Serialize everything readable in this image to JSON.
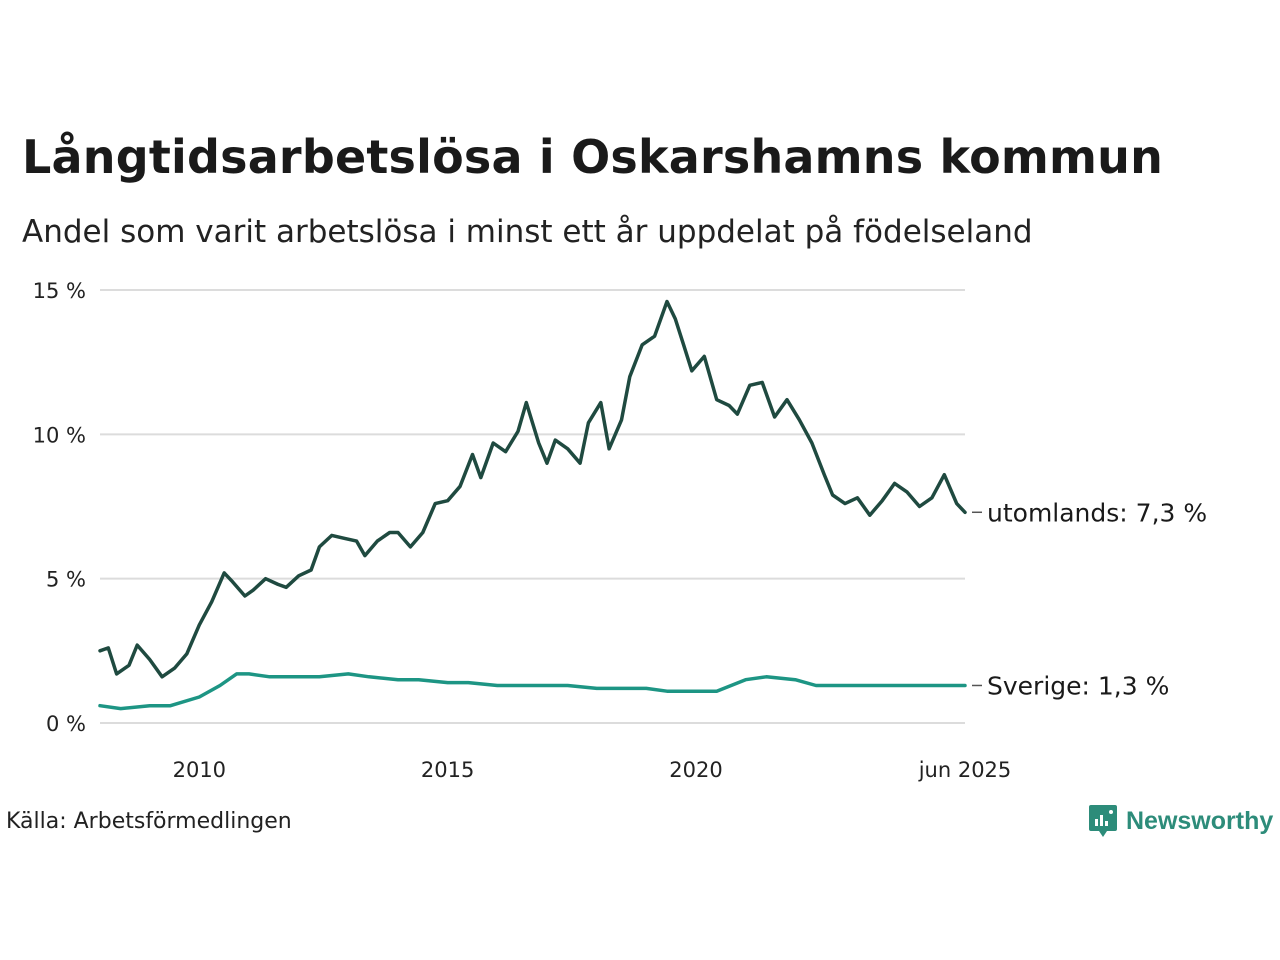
{
  "title": "Långtidsarbetslösa i Oskarshamns kommun",
  "subtitle": "Andel som varit arbetslösa i minst ett år uppdelat på födelseland",
  "source": "Källa: Arbetsförmedlingen",
  "brand": {
    "name": "Newsworthy",
    "icon": "newsworthy-logo-icon",
    "color": "#2d8c7a"
  },
  "chart_data": {
    "type": "line",
    "title": "Långtidsarbetslösa i Oskarshamns kommun",
    "subtitle": "Andel som varit arbetslösa i minst ett år uppdelat på födelseland",
    "xlabel": "",
    "ylabel": "",
    "xlim": [
      "2008-01",
      "2025-06"
    ],
    "ylim": [
      0,
      15
    ],
    "x_ticks": [
      "2010",
      "2015",
      "2020",
      "jun 2025"
    ],
    "y_ticks": [
      "0 %",
      "5 %",
      "10 %",
      "15 %"
    ],
    "y_tick_values": [
      0,
      5,
      10,
      15
    ],
    "grid": true,
    "legend": "none (direct labels at line end)",
    "series": [
      {
        "name": "utomlands",
        "end_label": "utomlands: 7,3 %",
        "color": "#1f4a40",
        "points": [
          [
            "2008-01",
            2.5
          ],
          [
            "2008-03",
            2.6
          ],
          [
            "2008-05",
            1.7
          ],
          [
            "2008-08",
            2.0
          ],
          [
            "2008-10",
            2.7
          ],
          [
            "2009-01",
            2.2
          ],
          [
            "2009-04",
            1.6
          ],
          [
            "2009-07",
            1.9
          ],
          [
            "2009-10",
            2.4
          ],
          [
            "2010-01",
            3.4
          ],
          [
            "2010-04",
            4.2
          ],
          [
            "2010-07",
            5.2
          ],
          [
            "2010-09",
            4.9
          ],
          [
            "2010-12",
            4.4
          ],
          [
            "2011-02",
            4.6
          ],
          [
            "2011-05",
            5.0
          ],
          [
            "2011-08",
            4.8
          ],
          [
            "2011-10",
            4.7
          ],
          [
            "2012-01",
            5.1
          ],
          [
            "2012-04",
            5.3
          ],
          [
            "2012-06",
            6.1
          ],
          [
            "2012-09",
            6.5
          ],
          [
            "2012-12",
            6.4
          ],
          [
            "2013-03",
            6.3
          ],
          [
            "2013-05",
            5.8
          ],
          [
            "2013-08",
            6.3
          ],
          [
            "2013-11",
            6.6
          ],
          [
            "2014-01",
            6.6
          ],
          [
            "2014-04",
            6.1
          ],
          [
            "2014-07",
            6.6
          ],
          [
            "2014-10",
            7.6
          ],
          [
            "2015-01",
            7.7
          ],
          [
            "2015-04",
            8.2
          ],
          [
            "2015-07",
            9.3
          ],
          [
            "2015-09",
            8.5
          ],
          [
            "2015-12",
            9.7
          ],
          [
            "2016-03",
            9.4
          ],
          [
            "2016-06",
            10.1
          ],
          [
            "2016-08",
            11.1
          ],
          [
            "2016-11",
            9.7
          ],
          [
            "2017-01",
            9.0
          ],
          [
            "2017-03",
            9.8
          ],
          [
            "2017-06",
            9.5
          ],
          [
            "2017-09",
            9.0
          ],
          [
            "2017-11",
            10.4
          ],
          [
            "2018-02",
            11.1
          ],
          [
            "2018-04",
            9.5
          ],
          [
            "2018-07",
            10.5
          ],
          [
            "2018-09",
            12.0
          ],
          [
            "2018-12",
            13.1
          ],
          [
            "2019-03",
            13.4
          ],
          [
            "2019-06",
            14.6
          ],
          [
            "2019-08",
            14.0
          ],
          [
            "2019-10",
            13.1
          ],
          [
            "2019-12",
            12.2
          ],
          [
            "2020-03",
            12.7
          ],
          [
            "2020-06",
            11.2
          ],
          [
            "2020-09",
            11.0
          ],
          [
            "2020-11",
            10.7
          ],
          [
            "2021-02",
            11.7
          ],
          [
            "2021-05",
            11.8
          ],
          [
            "2021-08",
            10.6
          ],
          [
            "2021-11",
            11.2
          ],
          [
            "2022-02",
            10.5
          ],
          [
            "2022-05",
            9.7
          ],
          [
            "2022-08",
            8.6
          ],
          [
            "2022-10",
            7.9
          ],
          [
            "2023-01",
            7.6
          ],
          [
            "2023-04",
            7.8
          ],
          [
            "2023-07",
            7.2
          ],
          [
            "2023-10",
            7.7
          ],
          [
            "2024-01",
            8.3
          ],
          [
            "2024-04",
            8.0
          ],
          [
            "2024-07",
            7.5
          ],
          [
            "2024-10",
            7.8
          ],
          [
            "2025-01",
            8.6
          ],
          [
            "2025-04",
            7.6
          ],
          [
            "2025-06",
            7.3
          ]
        ]
      },
      {
        "name": "Sverige",
        "end_label": "Sverige: 1,3 %",
        "color": "#1d9584",
        "points": [
          [
            "2008-01",
            0.6
          ],
          [
            "2008-06",
            0.5
          ],
          [
            "2009-01",
            0.6
          ],
          [
            "2009-06",
            0.6
          ],
          [
            "2010-01",
            0.9
          ],
          [
            "2010-06",
            1.3
          ],
          [
            "2010-10",
            1.7
          ],
          [
            "2011-01",
            1.7
          ],
          [
            "2011-06",
            1.6
          ],
          [
            "2012-01",
            1.6
          ],
          [
            "2012-06",
            1.6
          ],
          [
            "2013-01",
            1.7
          ],
          [
            "2013-06",
            1.6
          ],
          [
            "2014-01",
            1.5
          ],
          [
            "2014-06",
            1.5
          ],
          [
            "2015-01",
            1.4
          ],
          [
            "2015-06",
            1.4
          ],
          [
            "2016-01",
            1.3
          ],
          [
            "2016-06",
            1.3
          ],
          [
            "2017-01",
            1.3
          ],
          [
            "2017-06",
            1.3
          ],
          [
            "2018-01",
            1.2
          ],
          [
            "2018-06",
            1.2
          ],
          [
            "2019-01",
            1.2
          ],
          [
            "2019-06",
            1.1
          ],
          [
            "2020-01",
            1.1
          ],
          [
            "2020-06",
            1.1
          ],
          [
            "2021-01",
            1.5
          ],
          [
            "2021-06",
            1.6
          ],
          [
            "2022-01",
            1.5
          ],
          [
            "2022-06",
            1.3
          ],
          [
            "2023-01",
            1.3
          ],
          [
            "2023-06",
            1.3
          ],
          [
            "2024-01",
            1.3
          ],
          [
            "2024-06",
            1.3
          ],
          [
            "2025-01",
            1.3
          ],
          [
            "2025-06",
            1.3
          ]
        ]
      }
    ]
  }
}
